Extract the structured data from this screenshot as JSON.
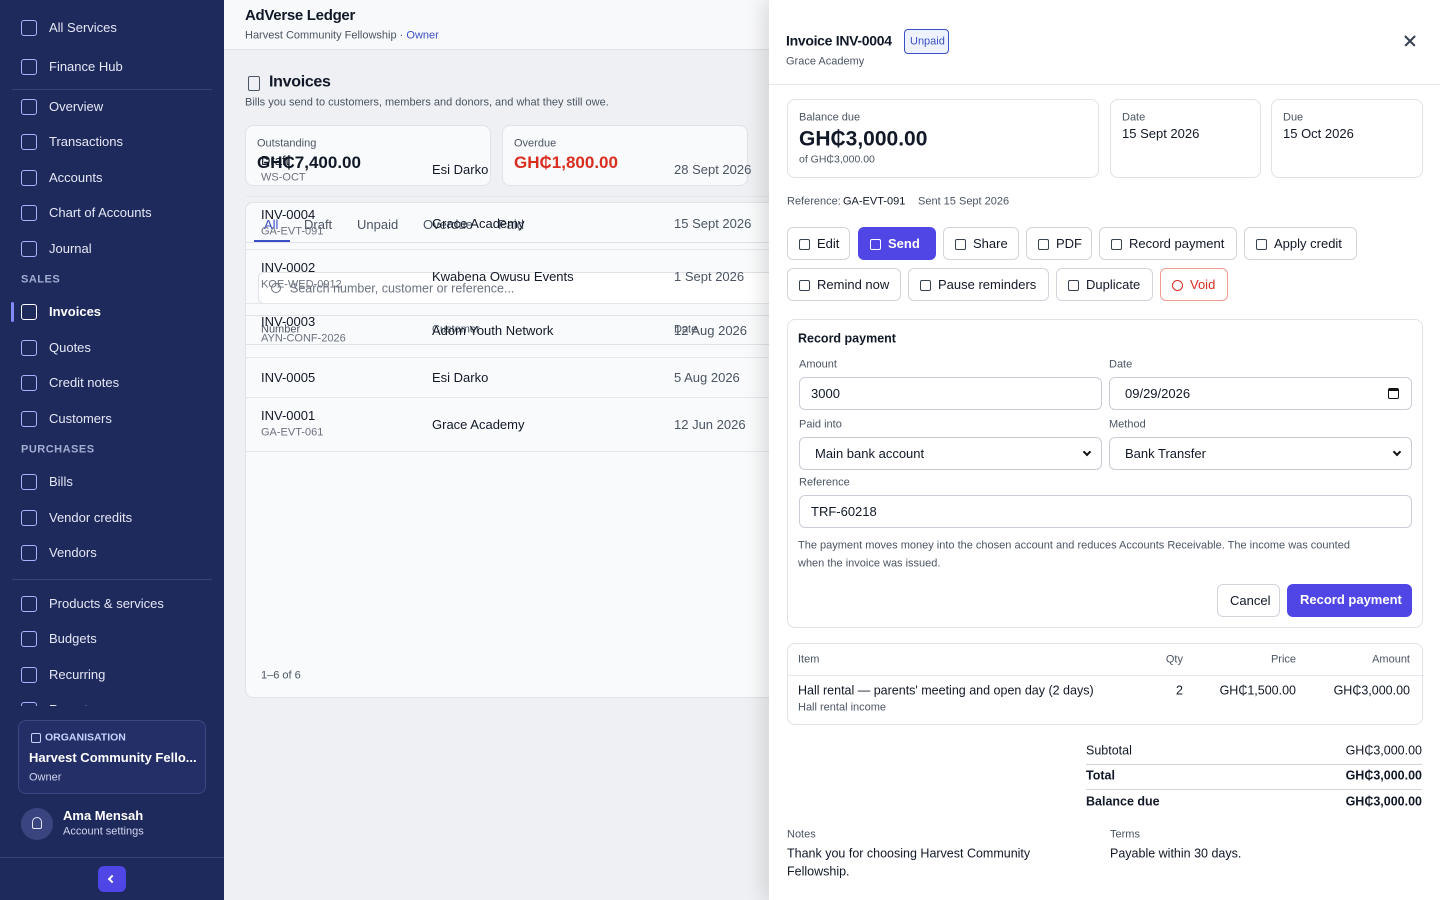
{
  "sidebar": {
    "top": [
      "All Services",
      "Finance Hub"
    ],
    "general": [
      "Overview",
      "Transactions",
      "Accounts",
      "Chart of Accounts",
      "Journal"
    ],
    "sales_heading": "SALES",
    "sales": [
      "Invoices",
      "Quotes",
      "Credit notes",
      "Customers"
    ],
    "purchases_heading": "PURCHASES",
    "purchases": [
      "Bills",
      "Vendor credits",
      "Vendors"
    ],
    "other": [
      "Products & services",
      "Budgets",
      "Recurring",
      "Reports"
    ],
    "organisation": {
      "label": "ORGANISATION",
      "name": "Harvest Community Fello...",
      "role": "Owner"
    },
    "user": {
      "name": "Ama Mensah",
      "link": "Account settings"
    }
  },
  "header": {
    "app": "AdVerse Ledger",
    "org": "Harvest Community Fellowship",
    "separator": "·",
    "role": "Owner"
  },
  "page": {
    "title": "Invoices",
    "subtitle": "Bills you send to customers, members and donors, and what they still owe.",
    "summary": [
      {
        "label": "Outstanding",
        "value": "GH₵7,400.00"
      },
      {
        "label": "Overdue",
        "value": "GH₵1,800.00"
      }
    ],
    "tabs": [
      "All",
      "Draft",
      "Unpaid",
      "Overdue",
      "Paid"
    ],
    "search_placeholder": "Search number, customer or reference...",
    "table": {
      "columns": [
        "Number",
        "Customer",
        "Date"
      ],
      "rows": [
        {
          "number": "Draft",
          "reference": "WS-OCT",
          "customer": "Esi Darko",
          "date": "28 Sept 2026"
        },
        {
          "number": "INV-0004",
          "reference": "GA-EVT-091",
          "customer": "Grace Academy",
          "date": "15 Sept 2026"
        },
        {
          "number": "INV-0002",
          "reference": "KOE-WED-0912",
          "customer": "Kwabena Owusu Events",
          "date": "1 Sept 2026"
        },
        {
          "number": "INV-0003",
          "reference": "AYN-CONF-2026",
          "customer": "Adom Youth Network",
          "date": "12 Aug 2026"
        },
        {
          "number": "INV-0005",
          "customer": "Esi Darko",
          "date": "5 Aug 2026"
        },
        {
          "number": "INV-0001",
          "reference": "GA-EVT-061",
          "customer": "Grace Academy",
          "date": "12 Jun 2026"
        }
      ]
    },
    "pagination": "1–6 of 6"
  },
  "panel": {
    "title": "Invoice INV-0004",
    "status": "Unpaid",
    "customer": "Grace Academy",
    "balance": {
      "label": "Balance due",
      "value": "GH₵3,000.00",
      "of": "of GH₵3,000.00"
    },
    "date": {
      "label": "Date",
      "value": "15 Sept 2026"
    },
    "due": {
      "label": "Due",
      "value": "15 Oct 2026"
    },
    "reference_label": "Reference:",
    "reference": "GA-EVT-091",
    "sent": "Sent 15 Sept 2026",
    "actions": [
      "Edit",
      "Send",
      "Share",
      "PDF",
      "Record payment",
      "Apply credit",
      "Remind now",
      "Pause reminders",
      "Duplicate",
      "Void"
    ],
    "payment_form": {
      "title": "Record payment",
      "fields": [
        {
          "label": "Amount",
          "value": "3000"
        },
        {
          "label": "Date",
          "value": "09/29/2026"
        },
        {
          "label": "Paid into",
          "value": "Main bank account"
        },
        {
          "label": "Method",
          "value": "Bank Transfer"
        },
        {
          "label": "Reference",
          "value": "TRF-60218"
        }
      ],
      "note": [
        "The payment moves money into the chosen account and reduces Accounts Receivable. The income was counted",
        "when the invoice was issued."
      ],
      "cancel": "Cancel",
      "submit": "Record payment"
    },
    "items": {
      "columns": [
        "Item",
        "Qty",
        "Price",
        "Amount"
      ],
      "rows": [
        {
          "item": "Hall rental — parents' meeting and open day (2 days)",
          "account": "Hall rental income",
          "qty": "2",
          "price": "GH₵1,500.00",
          "amount": "GH₵3,000.00"
        }
      ]
    },
    "totals": [
      {
        "label": "Subtotal",
        "value": "GH₵3,000.00"
      },
      {
        "label": "Total",
        "value": "GH₵3,000.00"
      },
      {
        "label": "Balance due",
        "value": "GH₵3,000.00"
      }
    ],
    "notes": {
      "label": "Notes",
      "text": [
        "Thank you for choosing Harvest Community",
        "Fellowship."
      ]
    },
    "terms": {
      "label": "Terms",
      "text": "Payable within 30 days."
    }
  }
}
